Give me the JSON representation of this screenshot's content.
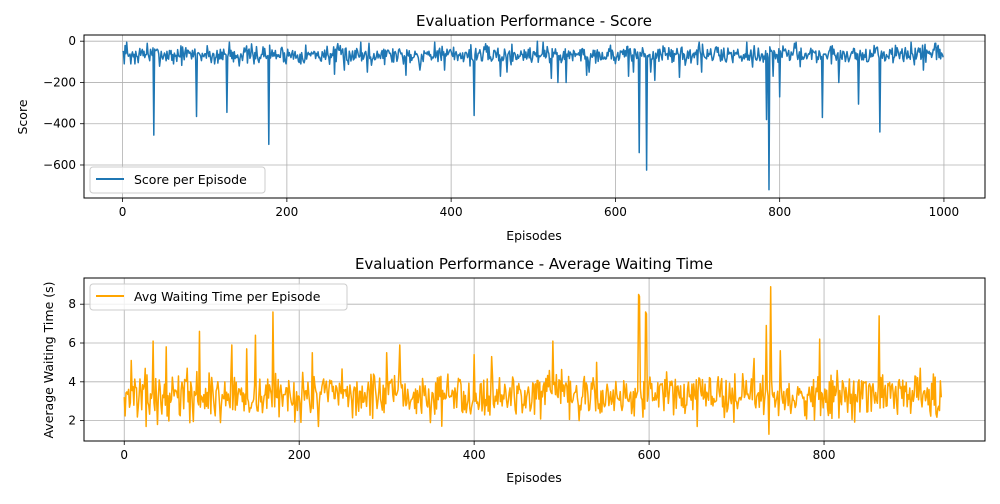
{
  "chart_data": [
    {
      "type": "line",
      "title": "Evaluation Performance - Score",
      "xlabel": "Episodes",
      "ylabel": "Score",
      "xlim": [
        -47,
        1050
      ],
      "ylim": [
        -760,
        30
      ],
      "xticks": [
        0,
        200,
        400,
        600,
        800,
        1000
      ],
      "yticks": [
        0,
        -200,
        -400,
        -600
      ],
      "grid": true,
      "legend_position": "lower-left",
      "n_points": 1000,
      "series": [
        {
          "name": "Score per Episode",
          "color": "#1f77b4",
          "baseline": -65,
          "noise": 22,
          "seed": 7,
          "clip_max": 0,
          "spikes": [
            [
              10,
              -110
            ],
            [
              15,
              -110
            ],
            [
              38,
              -455
            ],
            [
              62,
              -110
            ],
            [
              90,
              -365
            ],
            [
              112,
              -110
            ],
            [
              127,
              -345
            ],
            [
              142,
              -120
            ],
            [
              160,
              -110
            ],
            [
              178,
              -500
            ],
            [
              258,
              -160
            ],
            [
              270,
              -140
            ],
            [
              298,
              -150
            ],
            [
              345,
              -165
            ],
            [
              362,
              -140
            ],
            [
              392,
              -140
            ],
            [
              428,
              -360
            ],
            [
              460,
              -170
            ],
            [
              468,
              -150
            ],
            [
              505,
              -185
            ],
            [
              522,
              -180
            ],
            [
              530,
              -200
            ],
            [
              540,
              -200
            ],
            [
              565,
              -165
            ],
            [
              568,
              -150
            ],
            [
              616,
              -170
            ],
            [
              622,
              -150
            ],
            [
              629,
              -540
            ],
            [
              638,
              -625
            ],
            [
              643,
              -150
            ],
            [
              648,
              -190
            ],
            [
              678,
              -175
            ],
            [
              705,
              -150
            ],
            [
              760,
              -160
            ],
            [
              784,
              -380
            ],
            [
              787,
              -720
            ],
            [
              792,
              -170
            ],
            [
              800,
              -270
            ],
            [
              820,
              -225
            ],
            [
              852,
              -370
            ],
            [
              872,
              -200
            ],
            [
              896,
              -305
            ],
            [
              922,
              -440
            ],
            [
              975,
              -140
            ],
            [
              990,
              -150
            ]
          ],
          "peaks": [
            [
              5,
              -5
            ],
            [
              30,
              -10
            ],
            [
              130,
              -5
            ],
            [
              290,
              -5
            ],
            [
              300,
              -10
            ],
            [
              380,
              -5
            ],
            [
              505,
              0
            ],
            [
              512,
              -5
            ],
            [
              702,
              -5
            ],
            [
              760,
              -5
            ],
            [
              820,
              -5
            ],
            [
              960,
              -5
            ],
            [
              990,
              -10
            ]
          ]
        }
      ]
    },
    {
      "type": "line",
      "title": "Evaluation Performance - Average Waiting Time",
      "xlabel": "Episodes",
      "ylabel": "Average Waiting Time (s)",
      "xlim": [
        -46,
        984
      ],
      "ylim": [
        0.95,
        9.35
      ],
      "xticks": [
        0,
        200,
        400,
        600,
        800
      ],
      "yticks": [
        2,
        4,
        6,
        8
      ],
      "grid": true,
      "legend_position": "upper-left",
      "n_points": 935,
      "series": [
        {
          "name": "Avg Waiting Time per Episode",
          "color": "#ffa500",
          "baseline": 3.3,
          "noise": 0.55,
          "seed": 13,
          "clip_min": 1.3,
          "spikes": [
            [
              8,
              5.1
            ],
            [
              25,
              1.7
            ],
            [
              33,
              6.1
            ],
            [
              38,
              1.8
            ],
            [
              48,
              5.8
            ],
            [
              72,
              4.7
            ],
            [
              86,
              6.6
            ],
            [
              110,
              1.9
            ],
            [
              123,
              5.9
            ],
            [
              140,
              5.7
            ],
            [
              150,
              6.4
            ],
            [
              170,
              7.6
            ],
            [
              215,
              5.5
            ],
            [
              222,
              1.7
            ],
            [
              300,
              5.5
            ],
            [
              315,
              5.9
            ],
            [
              350,
              1.9
            ],
            [
              400,
              5.4
            ],
            [
              420,
              5.3
            ],
            [
              490,
              6.1
            ],
            [
              520,
              2.0
            ],
            [
              540,
              5.0
            ],
            [
              588,
              8.5
            ],
            [
              596,
              7.6
            ],
            [
              655,
              1.7
            ],
            [
              720,
              5.2
            ],
            [
              734,
              6.9
            ],
            [
              737,
              1.3
            ],
            [
              739,
              8.9
            ],
            [
              750,
              5.6
            ],
            [
              795,
              6.2
            ],
            [
              863,
              7.4
            ],
            [
              910,
              4.7
            ],
            [
              925,
              4.4
            ]
          ],
          "peaks": [
            [
              589,
              8.4
            ],
            [
              597,
              7.5
            ]
          ]
        }
      ]
    }
  ]
}
